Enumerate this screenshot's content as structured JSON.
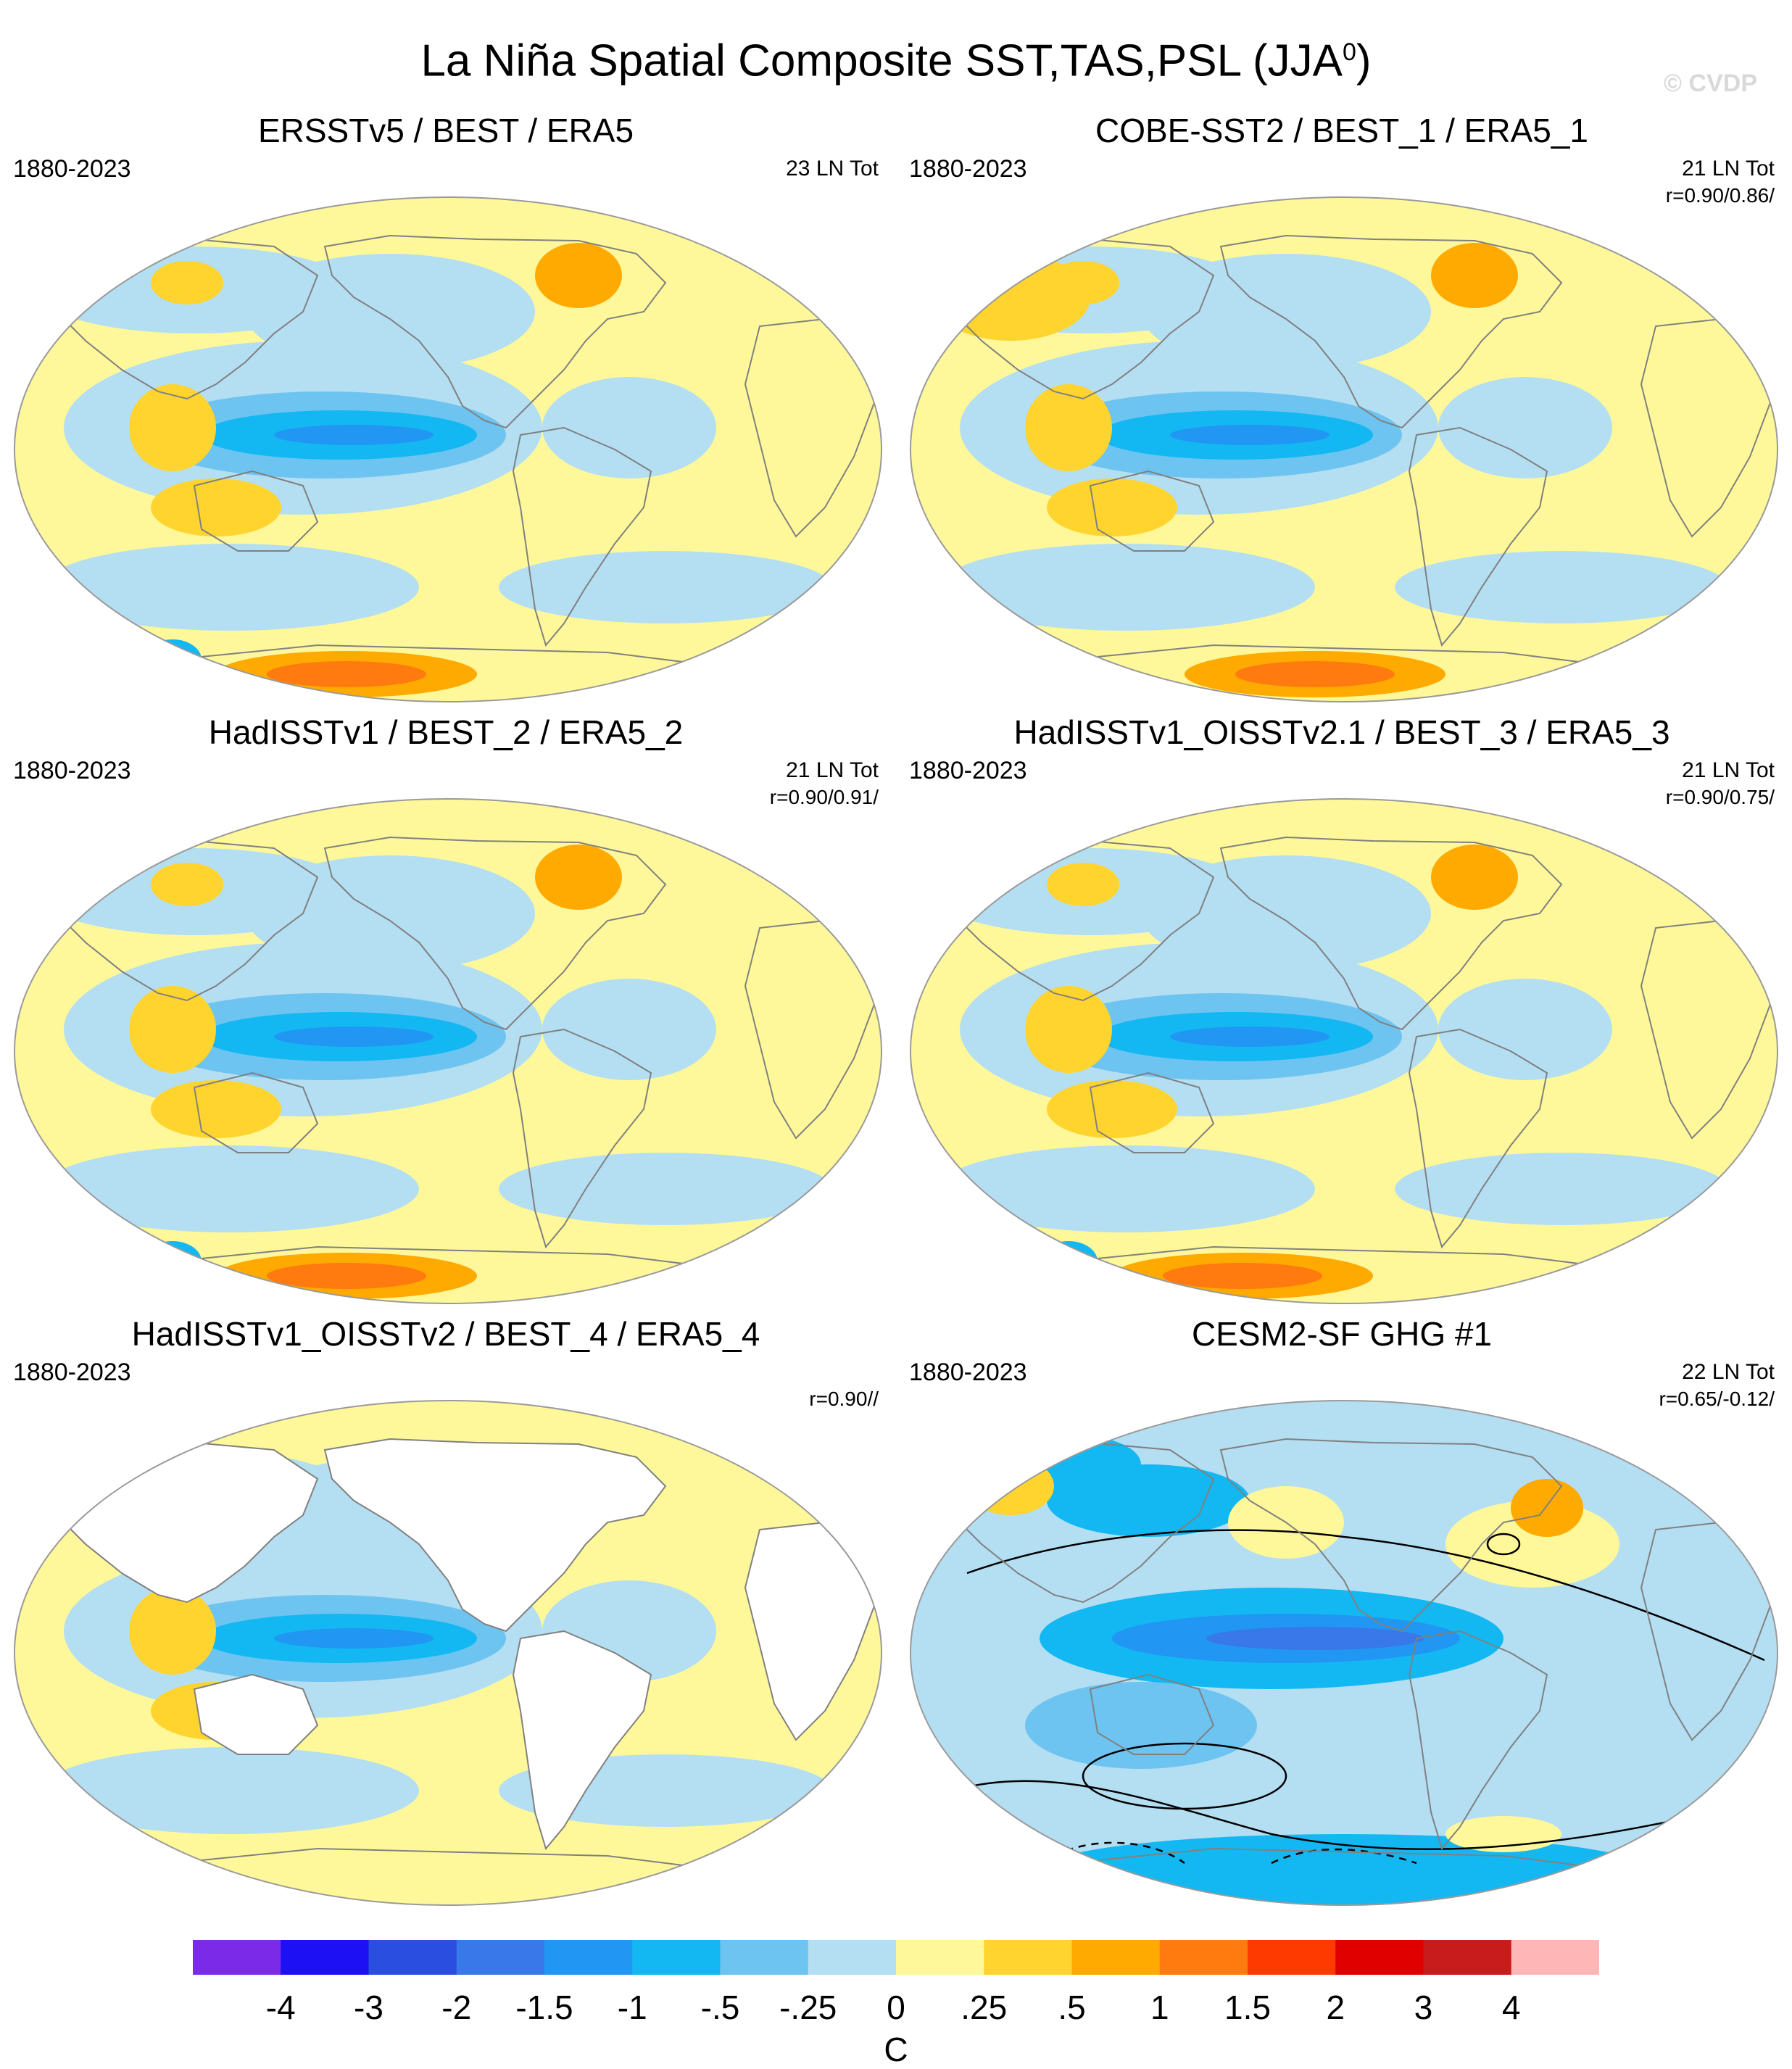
{
  "title": {
    "main": "La Niña Spatial Composite SST,TAS,PSL (JJA",
    "sup": "0",
    "close": ")",
    "watermark": "© CVDP"
  },
  "colors": {
    "land_outline": "#808080",
    "nodata": "#ffffff",
    "map_border": "#9a9a9a"
  },
  "panels": [
    {
      "title": "ERSSTv5 / BEST / ERA5",
      "period": "1880-2023",
      "count": "23 LN Tot",
      "corr": "",
      "style": "ersst"
    },
    {
      "title": "COBE-SST2 / BEST_1 / ERA5_1",
      "period": "1880-2023",
      "count": "21 LN Tot",
      "corr": "r=0.90/0.86/",
      "style": "cobe"
    },
    {
      "title": "HadISSTv1 / BEST_2 / ERA5_2",
      "period": "1880-2023",
      "count": "21 LN Tot",
      "corr": "r=0.90/0.91/",
      "style": "had"
    },
    {
      "title": "HadISSTv1_OISSTv2.1 / BEST_3 / ERA5_3",
      "period": "1880-2023",
      "count": "21 LN Tot",
      "corr": "r=0.90/0.75/",
      "style": "had"
    },
    {
      "title": "HadISSTv1_OISSTv2 / BEST_4 / ERA5_4",
      "period": "1880-2023",
      "count": "",
      "corr": "r=0.90//",
      "style": "oisst"
    },
    {
      "title": "CESM2-SF GHG #1",
      "period": "1880-2023",
      "count": "22 LN Tot",
      "corr": "r=0.65/-0.12/",
      "style": "cesm"
    }
  ],
  "chart_data": {
    "type": "heatmap",
    "projection": "robinson",
    "variable": "SST / TAS composite anomaly",
    "unit": "C",
    "levels": [
      "-4",
      "-3",
      "-2",
      "-1.5",
      "-1",
      "-.5",
      "-.25",
      "0",
      ".25",
      ".5",
      "1",
      "1.5",
      "2",
      "3",
      "4"
    ],
    "colors": [
      "#7b2be8",
      "#1e10f5",
      "#2a4ee0",
      "#3878e8",
      "#2196f3",
      "#13b8f2",
      "#6ec4f0",
      "#b4def2",
      "#fff89a",
      "#ffd42e",
      "#ffaa00",
      "#ff7a0f",
      "#ff3a00",
      "#e00000",
      "#c81c1c",
      "#ffb6b6"
    ]
  }
}
